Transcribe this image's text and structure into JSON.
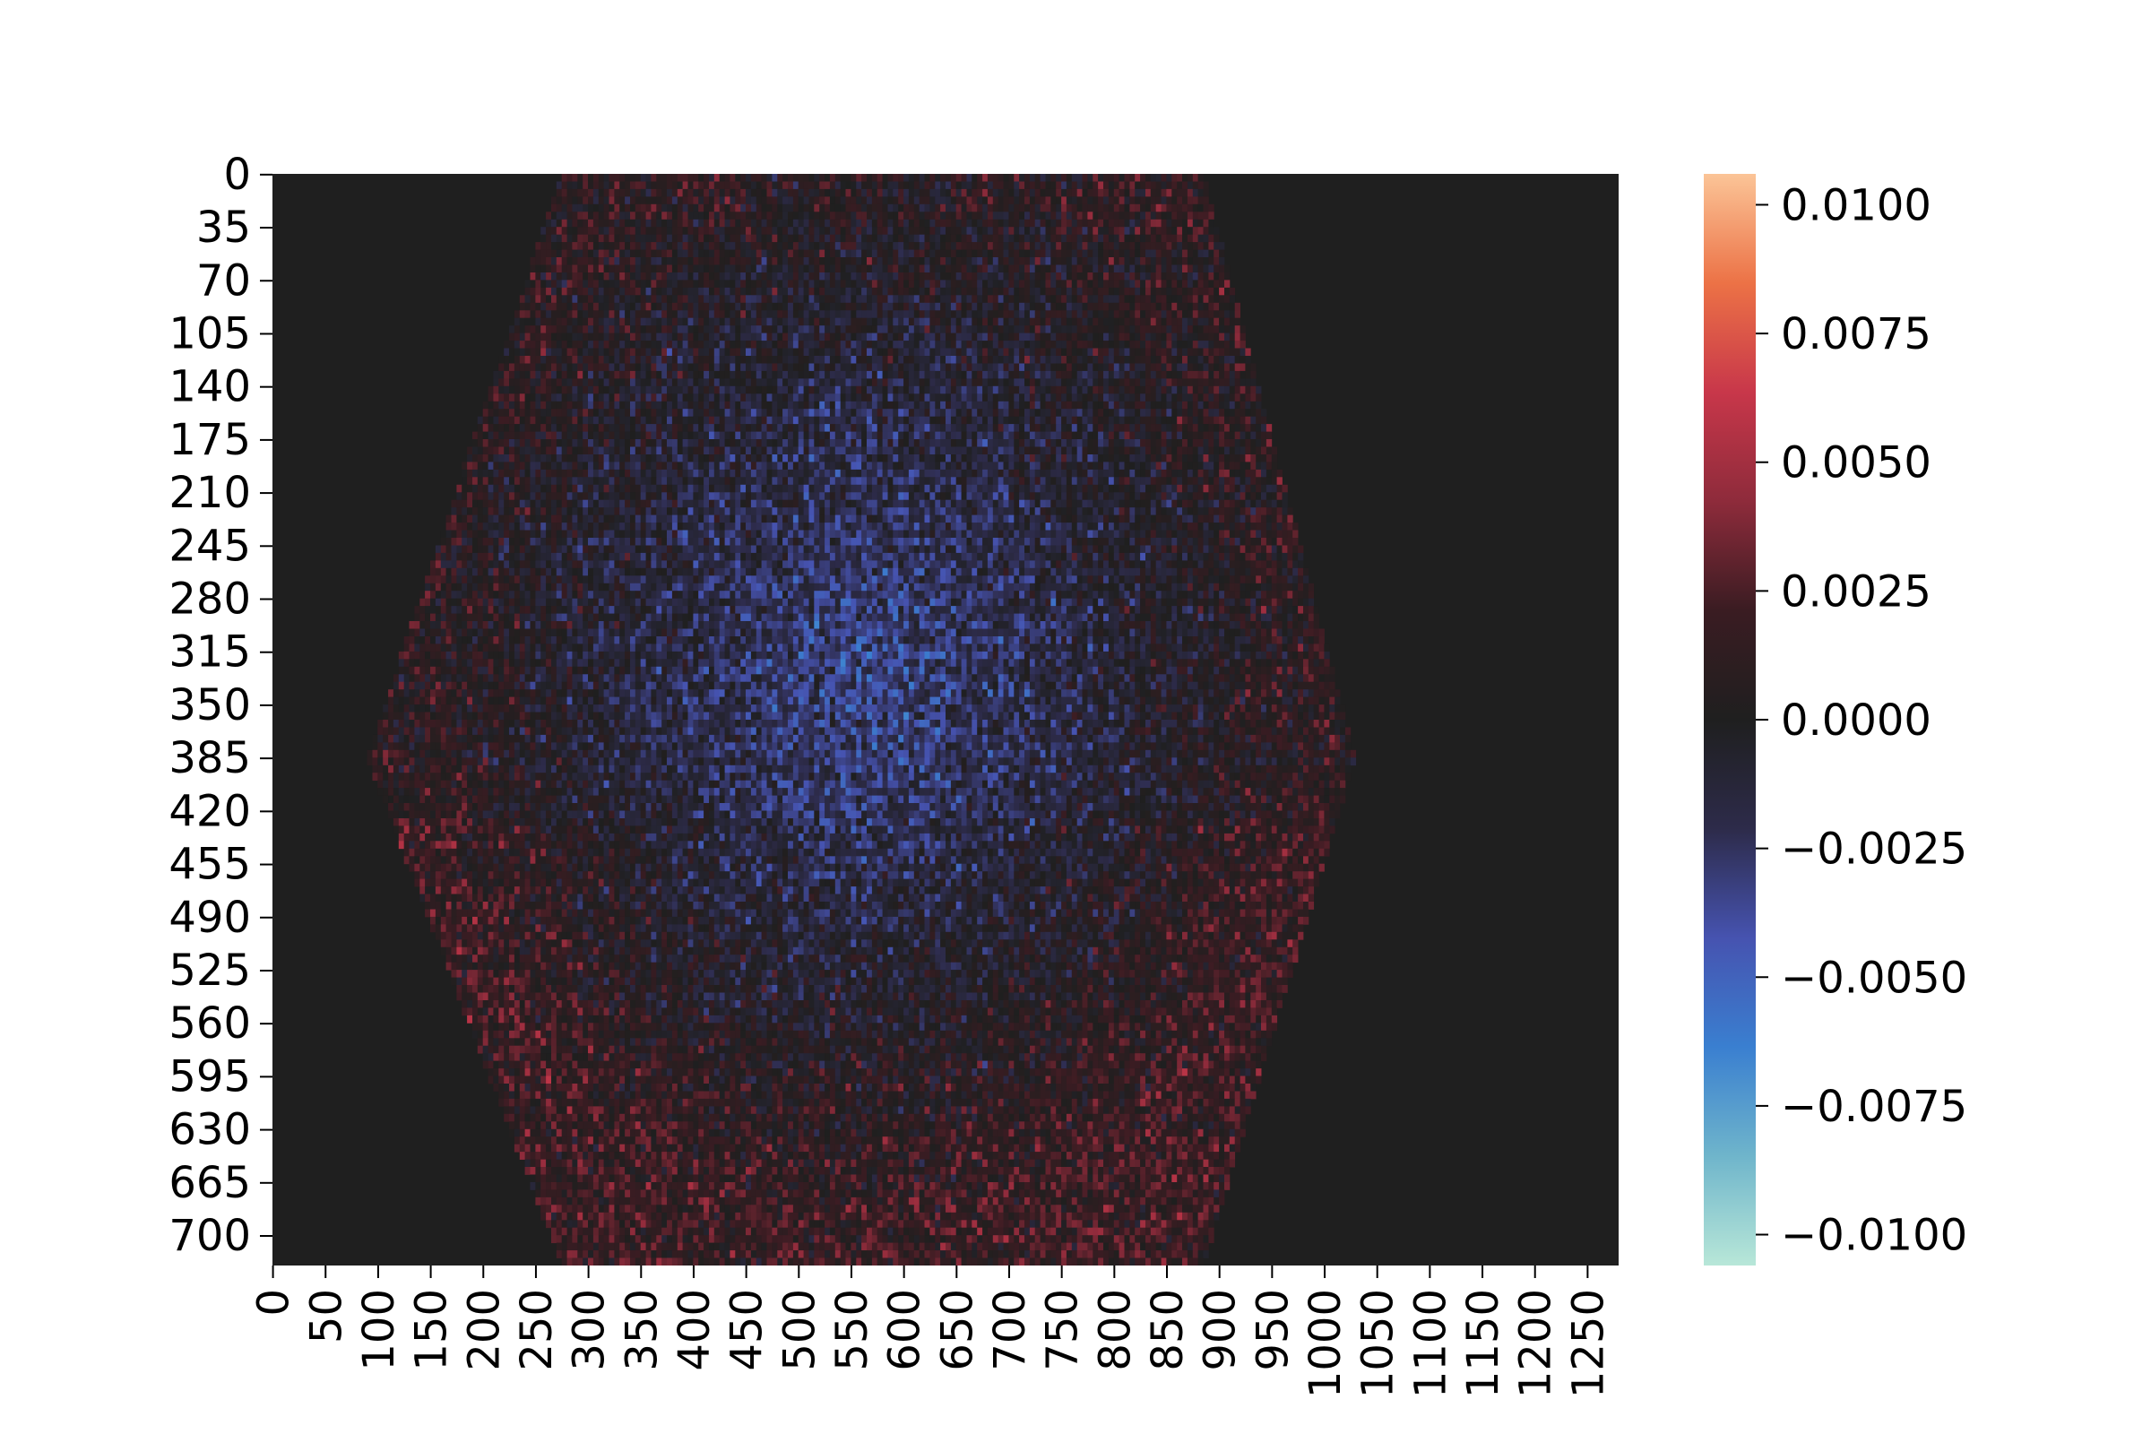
{
  "chart_data": {
    "type": "heatmap",
    "title": "",
    "xlabel": "",
    "ylabel": "",
    "x_ticks": [
      "0",
      "50",
      "100",
      "150",
      "200",
      "250",
      "300",
      "350",
      "400",
      "450",
      "500",
      "550",
      "600",
      "650",
      "700",
      "750",
      "800",
      "850",
      "900",
      "950",
      "1000",
      "1050",
      "1100",
      "1150",
      "1200",
      "1250"
    ],
    "y_ticks": [
      "0",
      "35",
      "70",
      "105",
      "140",
      "175",
      "210",
      "245",
      "280",
      "315",
      "350",
      "385",
      "420",
      "455",
      "490",
      "525",
      "560",
      "595",
      "630",
      "665",
      "700"
    ],
    "xlim": [
      0,
      1280
    ],
    "ylim": [
      720,
      0
    ],
    "colorbar": {
      "ticks": [
        "0.0100",
        "0.0075",
        "0.0050",
        "0.0025",
        "0.0000",
        "−0.0025",
        "−0.0050",
        "−0.0075",
        "−0.0100"
      ],
      "tick_values": [
        0.01,
        0.0075,
        0.005,
        0.0025,
        0,
        -0.0025,
        -0.005,
        -0.0075,
        -0.01
      ],
      "vmin": -0.0106,
      "vmax": 0.0106,
      "colormap": "icefire",
      "colors": [
        "#b8e7d8",
        "#6fb5cb",
        "#3a7fd0",
        "#4653b0",
        "#2d2b4a",
        "#1f1f1f",
        "#3a1c22",
        "#8e2b3b",
        "#c8374a",
        "#ec7246",
        "#fbc497"
      ]
    },
    "background_value": 0,
    "background_color": "#1f1f1f",
    "data_region": {
      "shape": "hexagon",
      "vertices": [
        [
          275,
          0
        ],
        [
          885,
          0
        ],
        [
          1030,
          385
        ],
        [
          885,
          720
        ],
        [
          275,
          720
        ],
        [
          90,
          385
        ]
      ],
      "description_values": {
        "center_mean": -0.0035,
        "edge_mean": 0.0015,
        "noise_std": 0.002
      }
    },
    "grid": false
  }
}
